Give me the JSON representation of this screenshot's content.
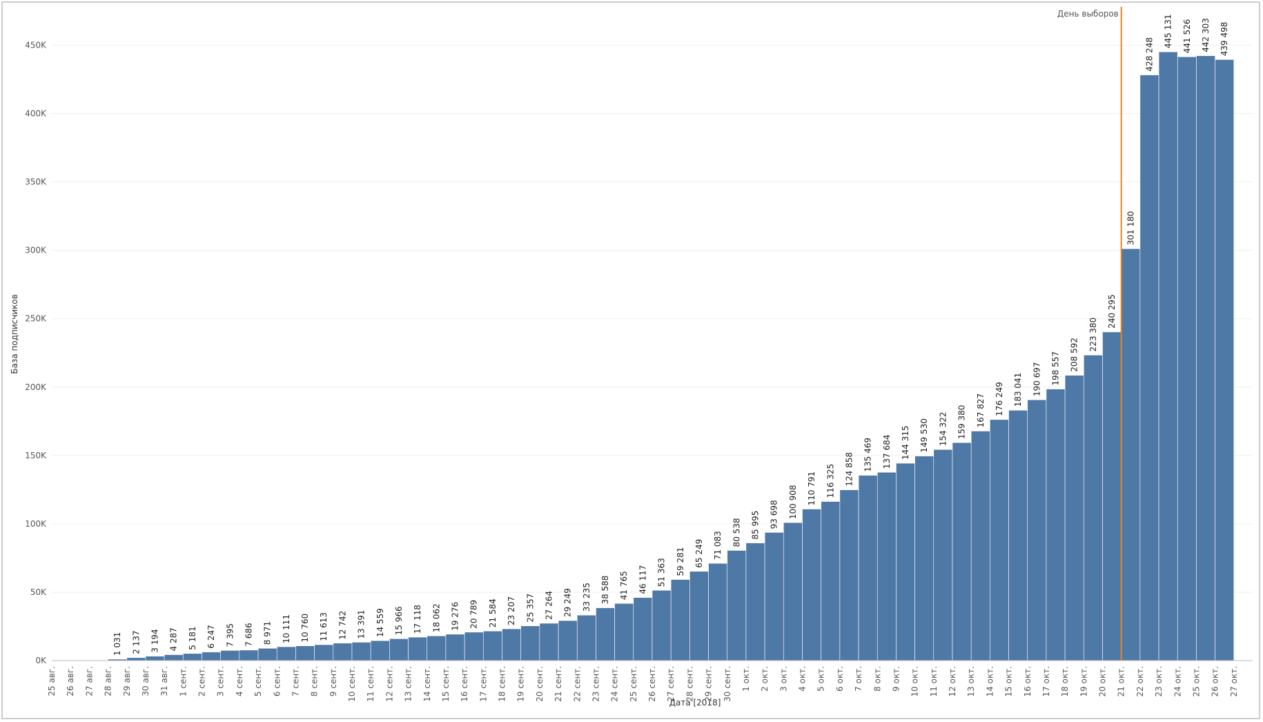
{
  "chart_data": {
    "type": "bar",
    "x_label": "Дата [2018]",
    "y_label": "База подписчиков",
    "color": "#4e79a7",
    "categories": [
      "25 авг.",
      "26 авг.",
      "27 авг.",
      "28 авг.",
      "29 авг.",
      "30 авг.",
      "31 авг.",
      "1 сент.",
      "2 сент.",
      "3 сент.",
      "4 сент.",
      "5 сент.",
      "6 сент.",
      "7 сент.",
      "8 сент.",
      "9 сент.",
      "10 сент.",
      "11 сент.",
      "12 сент.",
      "13 сент.",
      "14 сент.",
      "15 сент.",
      "16 сент.",
      "17 сент.",
      "18 сент.",
      "19 сент.",
      "20 сент.",
      "21 сент.",
      "22 сент.",
      "23 сент.",
      "24 сент.",
      "25 сент.",
      "26 сент.",
      "27 сент.",
      "28 сент.",
      "29 сент.",
      "30 сент.",
      "1 окт.",
      "2 окт.",
      "3 окт.",
      "4 окт.",
      "5 окт.",
      "6 окт.",
      "7 окт.",
      "8 окт.",
      "9 окт.",
      "10 окт.",
      "11 окт.",
      "12 окт.",
      "13 окт.",
      "14 окт.",
      "15 окт.",
      "16 окт.",
      "17 окт.",
      "18 окт.",
      "19 окт.",
      "20 окт.",
      "21 окт.",
      "22 окт.",
      "23 окт.",
      "24 окт.",
      "25 окт.",
      "26 окт.",
      "27 окт."
    ],
    "values": [
      null,
      null,
      null,
      1031,
      2137,
      3194,
      4287,
      5181,
      6247,
      7395,
      7686,
      8971,
      10111,
      10760,
      11613,
      12742,
      13391,
      14559,
      15966,
      17118,
      18062,
      19276,
      20789,
      21584,
      23207,
      25357,
      27264,
      29249,
      33235,
      38588,
      41765,
      46117,
      51363,
      59281,
      65249,
      71083,
      80538,
      85995,
      93698,
      100908,
      110791,
      116325,
      124858,
      135469,
      137684,
      144315,
      149530,
      154322,
      159380,
      167827,
      176249,
      183041,
      190697,
      198557,
      208592,
      223380,
      240295,
      301180,
      428248,
      445131,
      441526,
      442303,
      439498,
      null
    ],
    "value_labels": [
      null,
      null,
      null,
      "1 031",
      "2 137",
      "3 194",
      "4 287",
      "5 181",
      "6 247",
      "7 395",
      "7 686",
      "8 971",
      "10 111",
      "10 760",
      "11 613",
      "12 742",
      "13 391",
      "14 559",
      "15 966",
      "17 118",
      "18 062",
      "19 276",
      "20 789",
      "21 584",
      "23 207",
      "25 357",
      "27 264",
      "29 249",
      "33 235",
      "38 588",
      "41 765",
      "46 117",
      "51 363",
      "59 281",
      "65 249",
      "71 083",
      "80 538",
      "85 995",
      "93 698",
      "100 908",
      "110 791",
      "116 325",
      "124 858",
      "135 469",
      "137 684",
      "144 315",
      "149 530",
      "154 322",
      "159 380",
      "167 827",
      "176 249",
      "183 041",
      "190 697",
      "198 557",
      "208 592",
      "223 380",
      "240 295",
      "301 180",
      "428 248",
      "445 131",
      "441 526",
      "442 303",
      "439 498",
      null
    ],
    "ylim": [
      0,
      478000
    ],
    "yticks": [
      {
        "value": 0,
        "label": "0K"
      },
      {
        "value": 50000,
        "label": "50K"
      },
      {
        "value": 100000,
        "label": "100K"
      },
      {
        "value": 150000,
        "label": "150K"
      },
      {
        "value": 200000,
        "label": "200K"
      },
      {
        "value": 250000,
        "label": "250K"
      },
      {
        "value": 300000,
        "label": "300K"
      },
      {
        "value": 350000,
        "label": "350K"
      },
      {
        "value": 400000,
        "label": "400K"
      },
      {
        "value": 450000,
        "label": "450K"
      }
    ],
    "grid": true,
    "annotation": {
      "text": "День выборов",
      "category": "21 окт.",
      "color": "#e8851c"
    }
  }
}
